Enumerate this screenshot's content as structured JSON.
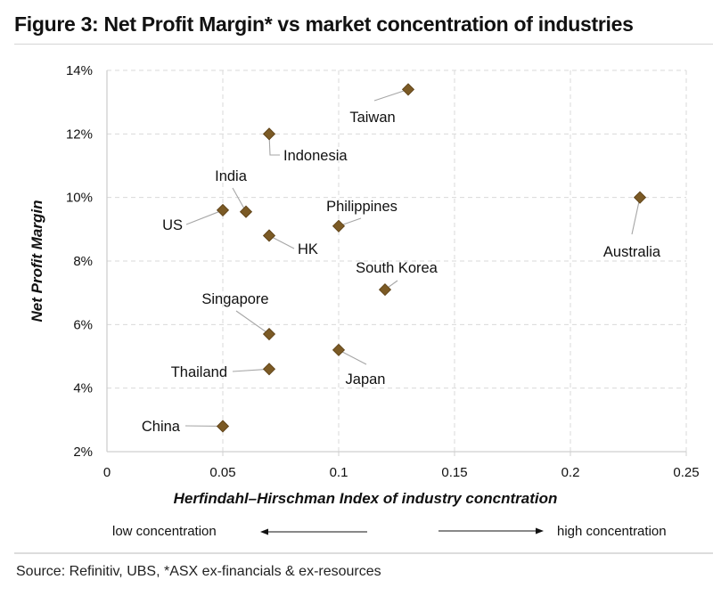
{
  "figure": {
    "title": "Figure 3: Net Profit Margin* vs market concentration of industries",
    "source": "Source: Refinitiv, UBS, *ASX ex-financials & ex-resources"
  },
  "chart_data": {
    "type": "scatter",
    "title": "Figure 3: Net Profit Margin* vs market concentration of industries",
    "xlabel": "Herfindahl–Hirschman Index of industry concntration",
    "ylabel": "Net Profit Margin",
    "xlim": [
      0,
      0.25
    ],
    "ylim": [
      0.02,
      0.14
    ],
    "x_ticks": [
      0,
      0.05,
      0.1,
      0.15,
      0.2,
      0.25
    ],
    "x_tick_labels": [
      "0",
      "0.05",
      "0.1",
      "0.15",
      "0.2",
      "0.25"
    ],
    "y_ticks": [
      0.02,
      0.04,
      0.06,
      0.08,
      0.1,
      0.12,
      0.14
    ],
    "y_tick_labels": [
      "2%",
      "4%",
      "6%",
      "8%",
      "10%",
      "12%",
      "14%"
    ],
    "grid": true,
    "marker": "diamond",
    "marker_color": "#7b5a25",
    "points": [
      {
        "label": "Taiwan",
        "x": 0.13,
        "y": 0.134
      },
      {
        "label": "Indonesia",
        "x": 0.07,
        "y": 0.12
      },
      {
        "label": "India",
        "x": 0.06,
        "y": 0.0955
      },
      {
        "label": "US",
        "x": 0.05,
        "y": 0.096
      },
      {
        "label": "Philippines",
        "x": 0.1,
        "y": 0.091
      },
      {
        "label": "Australia",
        "x": 0.23,
        "y": 0.1
      },
      {
        "label": "HK",
        "x": 0.07,
        "y": 0.088
      },
      {
        "label": "South Korea",
        "x": 0.12,
        "y": 0.071
      },
      {
        "label": "Singapore",
        "x": 0.07,
        "y": 0.057
      },
      {
        "label": "Japan",
        "x": 0.1,
        "y": 0.052
      },
      {
        "label": "Thailand",
        "x": 0.07,
        "y": 0.046
      },
      {
        "label": "China",
        "x": 0.05,
        "y": 0.028
      }
    ],
    "annotations": [
      {
        "text": "low concentration",
        "arrow": "left"
      },
      {
        "text": "high concentration",
        "arrow": "right"
      }
    ]
  }
}
